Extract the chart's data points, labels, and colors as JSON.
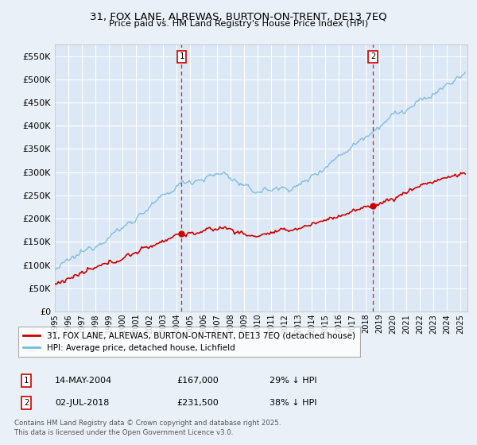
{
  "title": "31, FOX LANE, ALREWAS, BURTON-ON-TRENT, DE13 7EQ",
  "subtitle": "Price paid vs. HM Land Registry's House Price Index (HPI)",
  "ylabel_ticks": [
    "£0",
    "£50K",
    "£100K",
    "£150K",
    "£200K",
    "£250K",
    "£300K",
    "£350K",
    "£400K",
    "£450K",
    "£500K",
    "£550K"
  ],
  "ytick_values": [
    0,
    50000,
    100000,
    150000,
    200000,
    250000,
    300000,
    350000,
    400000,
    450000,
    500000,
    550000
  ],
  "ylim": [
    0,
    575000
  ],
  "xlim_start": 1995.0,
  "xlim_end": 2025.5,
  "background_color": "#eaf0f8",
  "plot_bg_color": "#dce8f5",
  "grid_color": "#ffffff",
  "marker1_year": 2004.37,
  "marker2_year": 2018.5,
  "sale1_date": "14-MAY-2004",
  "sale1_price": "£167,000",
  "sale1_note": "29% ↓ HPI",
  "sale2_date": "02-JUL-2018",
  "sale2_price": "£231,500",
  "sale2_note": "38% ↓ HPI",
  "legend_label1": "31, FOX LANE, ALREWAS, BURTON-ON-TRENT, DE13 7EQ (detached house)",
  "legend_label2": "HPI: Average price, detached house, Lichfield",
  "footnote": "Contains HM Land Registry data © Crown copyright and database right 2025.\nThis data is licensed under the Open Government Licence v3.0.",
  "hpi_color": "#7ab8d9",
  "price_color": "#cc0000",
  "marker_color": "#cc0000",
  "sale1_price_val": 167000,
  "sale2_price_val": 231500,
  "sale1_year": 2004.37,
  "sale2_year": 2018.5
}
